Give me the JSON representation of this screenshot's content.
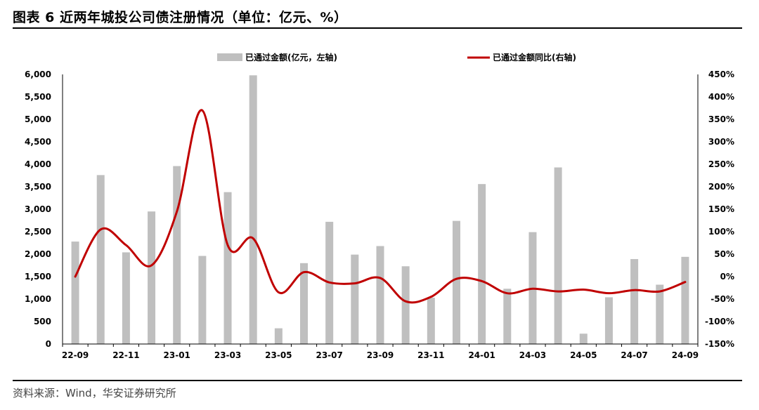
{
  "figure": {
    "title": "图表 6  近两年城投公司债注册情况（单位：亿元、%）",
    "source": "资料来源：Wind，华安证券研究所"
  },
  "chart_data": {
    "type": "bar+line",
    "x_tick_labels": [
      "22-09",
      "22-11",
      "23-01",
      "23-03",
      "23-05",
      "23-07",
      "23-09",
      "23-11",
      "24-01",
      "24-03",
      "24-05",
      "24-07",
      "24-09"
    ],
    "categories": [
      "22-09",
      "22-10",
      "22-11",
      "22-12",
      "23-01",
      "23-02",
      "23-03",
      "23-04",
      "23-05",
      "23-06",
      "23-07",
      "23-08",
      "23-09",
      "23-10",
      "23-11",
      "23-12",
      "24-01",
      "24-02",
      "24-03",
      "24-04",
      "24-05",
      "24-06",
      "24-07",
      "24-08",
      "24-09"
    ],
    "series": [
      {
        "name": "已通过金额(亿元，左轴)",
        "type": "bar",
        "axis": "left",
        "color": "#bfbfbf",
        "values": [
          2280,
          3760,
          2040,
          2950,
          3960,
          1960,
          3380,
          5980,
          350,
          1800,
          2720,
          1990,
          2180,
          1730,
          1030,
          2740,
          3560,
          1230,
          2490,
          3930,
          230,
          1040,
          1890,
          1320,
          1940
        ]
      },
      {
        "name": "已通过金额同比(右轴)",
        "type": "line",
        "axis": "right",
        "color": "#c00000",
        "values": [
          0,
          105,
          70,
          25,
          145,
          370,
          70,
          85,
          -35,
          10,
          -13,
          -15,
          -3,
          -55,
          -45,
          -5,
          -10,
          -37,
          -27,
          -33,
          -29,
          -37,
          -30,
          -33,
          -12
        ]
      }
    ],
    "left_axis": {
      "min": 0,
      "max": 6000,
      "step": 500,
      "ticks": [
        "0",
        "500",
        "1,000",
        "1,500",
        "2,000",
        "2,500",
        "3,000",
        "3,500",
        "4,000",
        "4,500",
        "5,000",
        "5,500",
        "6,000"
      ]
    },
    "right_axis": {
      "min": -150,
      "max": 450,
      "step": 50,
      "ticks": [
        "-150%",
        "-100%",
        "-50%",
        "0%",
        "50%",
        "100%",
        "150%",
        "200%",
        "250%",
        "300%",
        "350%",
        "400%",
        "450%"
      ]
    },
    "legend_position": "top",
    "grid": false
  }
}
